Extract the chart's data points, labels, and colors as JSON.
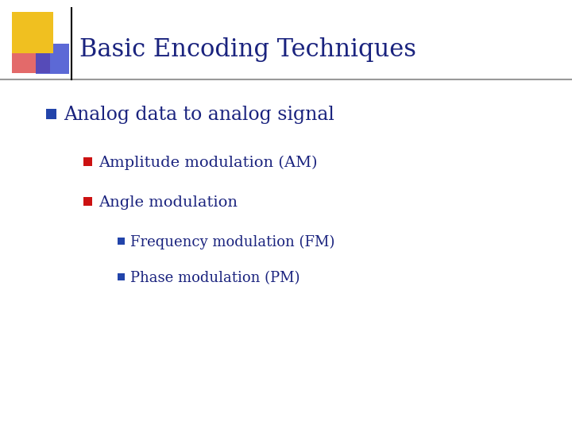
{
  "title": "Basic Encoding Techniques",
  "title_color": "#1a237e",
  "title_fontsize": 22,
  "background_color": "#ffffff",
  "bullet1": "Analog data to analog signal",
  "bullet1_color": "#1a237e",
  "bullet1_marker_color": "#2244aa",
  "bullet1_fontsize": 17,
  "sub_bullets": [
    {
      "text": "Amplitude modulation (AM)",
      "color": "#1a237e",
      "marker_color": "#cc1111"
    },
    {
      "text": "Angle modulation",
      "color": "#1a237e",
      "marker_color": "#cc1111"
    }
  ],
  "sub_bullet_fontsize": 14,
  "sub_sub_bullets": [
    {
      "text": "Frequency modulation (FM)",
      "color": "#1a237e",
      "marker_color": "#2244aa"
    },
    {
      "text": "Phase modulation (PM)",
      "color": "#1a237e",
      "marker_color": "#2244aa"
    }
  ],
  "sub_sub_bullet_fontsize": 13,
  "logo_yellow": "#f0c020",
  "logo_red_grad_start": "#ff8888",
  "logo_red_grad_end": "#cc2222",
  "logo_blue_grad_start": "#4455cc",
  "logo_blue_grad_end": "#aabbff"
}
